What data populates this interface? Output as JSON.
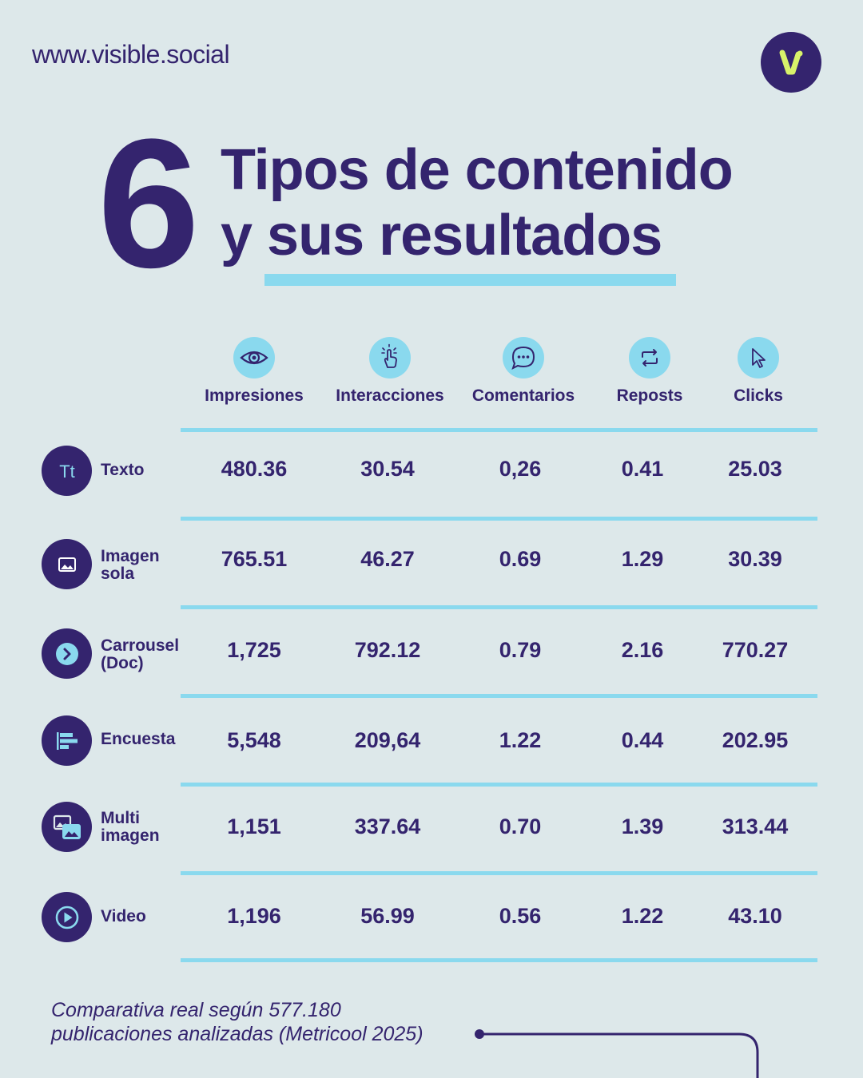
{
  "brand": {
    "url": "www.visible.social",
    "logo_letter": "v",
    "colors": {
      "primary": "#34246e",
      "accent": "#8ad9ee",
      "logo_accent": "#d8f26a",
      "background": "#dde8ea"
    }
  },
  "heading": {
    "number": "6",
    "line1": "Tipos de contenido",
    "line2": "y sus resultados"
  },
  "columns": [
    {
      "label": "Impresiones",
      "icon": "eye-icon"
    },
    {
      "label": "Interacciones",
      "icon": "tap-hand-icon"
    },
    {
      "label": "Comentarios",
      "icon": "speech-bubble-icon"
    },
    {
      "label": "Reposts",
      "icon": "repost-icon"
    },
    {
      "label": "Clicks",
      "icon": "cursor-icon"
    }
  ],
  "rows": [
    {
      "label": "Texto",
      "icon": "text-tt-icon",
      "values": [
        "480.36",
        "30.54",
        "0,26",
        "0.41",
        "25.03"
      ]
    },
    {
      "label": "Imagen\nsola",
      "icon": "image-icon",
      "values": [
        "765.51",
        "46.27",
        "0.69",
        "1.29",
        "30.39"
      ]
    },
    {
      "label": "Carrousel\n(Doc)",
      "icon": "chevron-right-icon",
      "values": [
        "1,725",
        "792.12",
        "0.79",
        "2.16",
        "770.27"
      ]
    },
    {
      "label": "Encuesta",
      "icon": "poll-bars-icon",
      "values": [
        "5,548",
        "209,64",
        "1.22",
        "0.44",
        "202.95"
      ]
    },
    {
      "label": "Multi\nimagen",
      "icon": "multi-image-icon",
      "values": [
        "1,151",
        "337.64",
        "0.70",
        "1.39",
        "313.44"
      ]
    },
    {
      "label": "Video",
      "icon": "play-icon",
      "values": [
        "1,196",
        "56.99",
        "0.56",
        "1.22",
        "43.10"
      ]
    }
  ],
  "footnote": "Comparativa real según 577.180\npublicaciones analizadas (Metricool 2025)"
}
